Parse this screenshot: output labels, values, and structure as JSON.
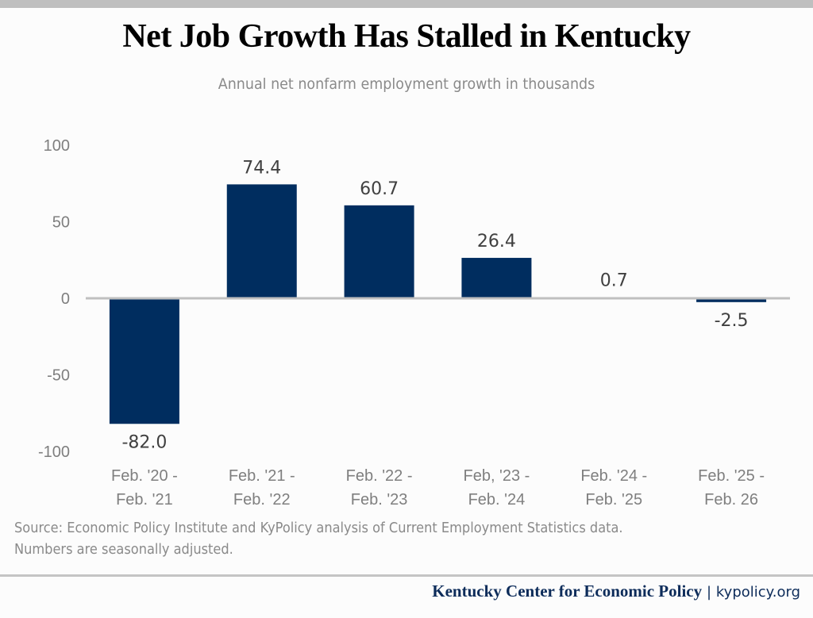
{
  "title": "Net Job Growth Has Stalled in Kentucky",
  "subtitle": "Annual net nonfarm employment growth in thousands",
  "source_lines": [
    "Source: Economic Policy Institute and KyPolicy analysis of Current Employment Statistics data.",
    "Numbers are seasonally adjusted."
  ],
  "footer": {
    "org": "Kentucky Center for Economic Policy",
    "separator": "|",
    "site": "kypolicy.org"
  },
  "colors": {
    "bar": "#002d5f",
    "axis": "#bfbfbf",
    "tick_text": "#7f7f7f",
    "label_text": "#404040"
  },
  "chart_data": {
    "type": "bar",
    "title": "Net Job Growth Has Stalled in Kentucky",
    "subtitle": "Annual net nonfarm employment growth in thousands",
    "categories": [
      [
        "Feb. '20 -",
        "Feb. '21"
      ],
      [
        "Feb. '21 -",
        "Feb. '22"
      ],
      [
        "Feb. '22 -",
        "Feb. '23"
      ],
      [
        "Feb, '23 -",
        "Feb. '24"
      ],
      [
        "Feb. '24 -",
        "Feb. '25"
      ],
      [
        "Feb. '25 -",
        "Feb. 26"
      ]
    ],
    "values": [
      -82.0,
      74.4,
      60.7,
      26.4,
      0.7,
      -2.5
    ],
    "data_labels": [
      "-82.0",
      "74.4",
      "60.7",
      "26.4",
      "0.7",
      "-2.5"
    ],
    "ylim": [
      -100,
      100
    ],
    "yticks": [
      100,
      50,
      0,
      -50,
      -100
    ],
    "grid": false,
    "legend": "none",
    "xlabel": "",
    "ylabel": ""
  }
}
